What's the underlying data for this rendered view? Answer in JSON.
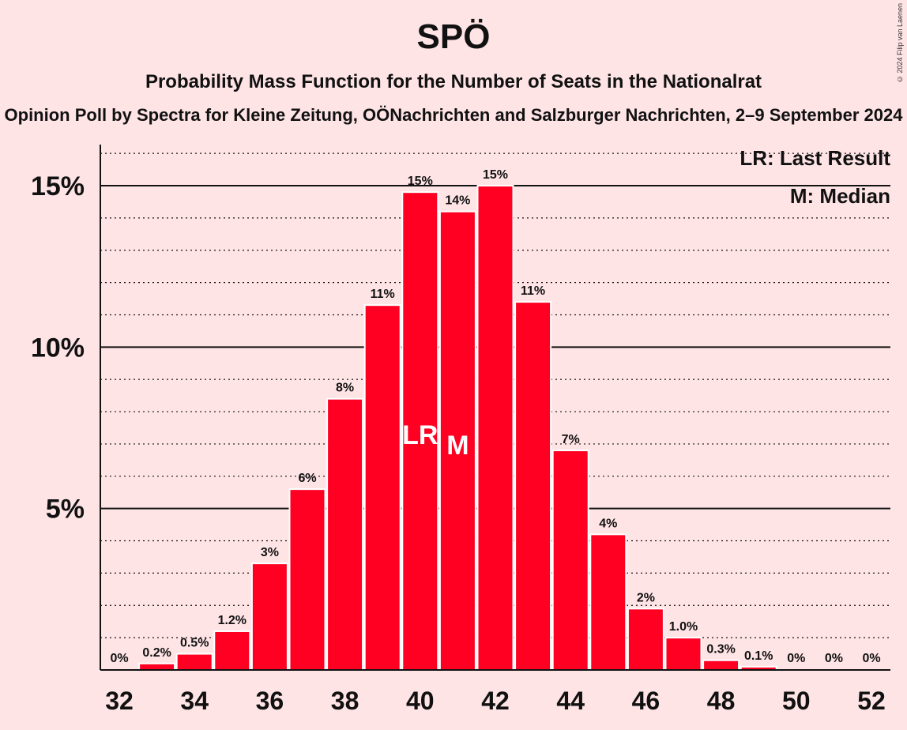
{
  "header": {
    "title": "SPÖ",
    "subtitle": "Probability Mass Function for the Number of Seats in the Nationalrat",
    "source": "Opinion Poll by Spectra for Kleine Zeitung, OÖNachrichten and Salzburger Nachrichten, 2–9 September 2024",
    "copyright": "© 2024 Filip van Laenen"
  },
  "legend": {
    "last_result": "LR: Last Result",
    "median": "M: Median"
  },
  "colors": {
    "bar": "#ff0022",
    "background": "#ffe4e6",
    "bar_border": "#ffffff"
  },
  "chart_data": {
    "type": "bar",
    "x": [
      32,
      33,
      34,
      35,
      36,
      37,
      38,
      39,
      40,
      41,
      42,
      43,
      44,
      45,
      46,
      47,
      48,
      49,
      50,
      51,
      52
    ],
    "values": [
      0.0,
      0.2,
      0.5,
      1.2,
      3.3,
      5.6,
      8.4,
      11.3,
      14.8,
      14.2,
      15.0,
      11.4,
      6.8,
      4.2,
      1.9,
      1.0,
      0.3,
      0.1,
      0.0,
      0.0,
      0.0
    ],
    "labels": [
      "0%",
      "0.2%",
      "0.5%",
      "1.2%",
      "3%",
      "6%",
      "8%",
      "11%",
      "15%",
      "14%",
      "15%",
      "11%",
      "7%",
      "4%",
      "2%",
      "1.0%",
      "0.3%",
      "0.1%",
      "0%",
      "0%",
      "0%"
    ],
    "x_tick_labels": [
      "32",
      "34",
      "36",
      "38",
      "40",
      "42",
      "44",
      "46",
      "48",
      "50",
      "52"
    ],
    "y_ticks": [
      5,
      10,
      15
    ],
    "y_tick_labels": [
      "5%",
      "10%",
      "15%"
    ],
    "ylim": [
      0,
      16.3
    ],
    "last_result_seat": 40,
    "last_result_marker": "LR",
    "median_seat": 41,
    "median_marker": "M",
    "grid": "solid major lines at 5% steps, dotted minor lines at 1% steps",
    "legend_placement": "top-right"
  }
}
